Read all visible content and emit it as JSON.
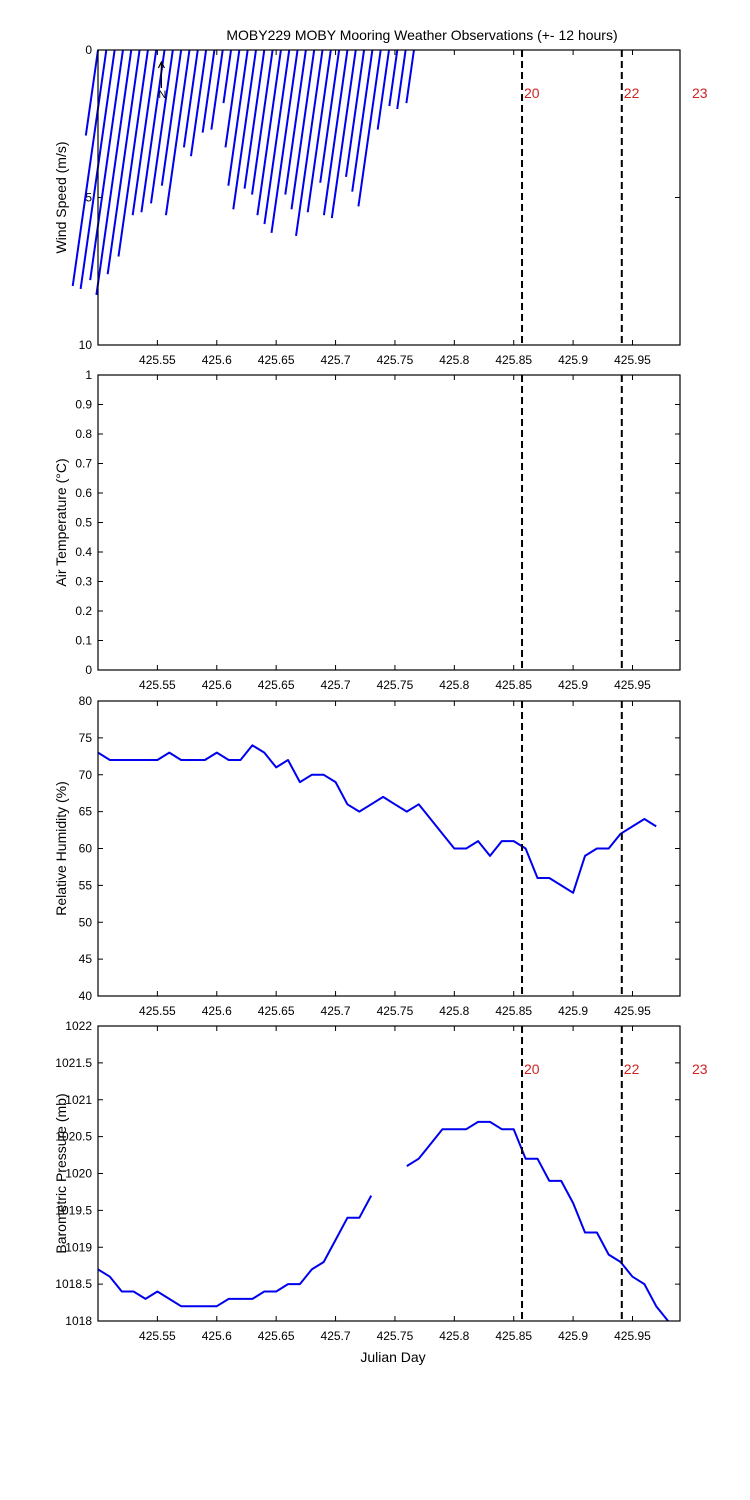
{
  "figure": {
    "title": "MOBY229 MOBY Mooring Weather Observations (+- 12 hours)",
    "xlabel": "Julian Day",
    "x_ticks": [
      "425.55",
      "425.6",
      "425.65",
      "425.7",
      "425.75",
      "425.8",
      "425.85",
      "425.9",
      "425.95"
    ],
    "x_tick_values": [
      425.55,
      425.6,
      425.65,
      425.7,
      425.75,
      425.8,
      425.85,
      425.9,
      425.95
    ],
    "xlim": [
      425.5,
      425.99
    ],
    "event_lines": [
      425.857,
      425.941
    ],
    "event_labels": [
      "20",
      "22",
      "23"
    ],
    "north_label": "N",
    "colors": {
      "series": "#0000ee",
      "event_label": "#cc2222",
      "axis": "#000000"
    }
  },
  "chart_data": [
    {
      "type": "line",
      "name": "wind",
      "ylabel": "Wind Speed (m/s)",
      "ylim": [
        10,
        0
      ],
      "y_ticks": [
        "0",
        "5",
        "10"
      ],
      "y_tick_values": [
        0,
        5,
        10
      ],
      "wind_stick_tips": [
        [
          425.5,
          2.9
        ],
        [
          425.507,
          8.0
        ],
        [
          425.514,
          8.1
        ],
        [
          425.521,
          7.8
        ],
        [
          425.528,
          8.3
        ],
        [
          425.535,
          7.6
        ],
        [
          425.542,
          7.0
        ],
        [
          425.549,
          5.6
        ],
        [
          425.556,
          5.5
        ],
        [
          425.563,
          5.2
        ],
        [
          425.57,
          4.6
        ],
        [
          425.577,
          5.6
        ],
        [
          425.584,
          3.3
        ],
        [
          425.591,
          3.6
        ],
        [
          425.598,
          2.8
        ],
        [
          425.605,
          2.7
        ],
        [
          425.612,
          1.8
        ],
        [
          425.619,
          3.3
        ],
        [
          425.626,
          4.6
        ],
        [
          425.633,
          5.4
        ],
        [
          425.64,
          4.7
        ],
        [
          425.647,
          4.9
        ],
        [
          425.654,
          5.6
        ],
        [
          425.661,
          5.9
        ],
        [
          425.668,
          6.2
        ],
        [
          425.675,
          4.9
        ],
        [
          425.682,
          5.4
        ],
        [
          425.689,
          6.3
        ],
        [
          425.696,
          5.5
        ],
        [
          425.703,
          4.5
        ],
        [
          425.71,
          5.6
        ],
        [
          425.717,
          5.7
        ],
        [
          425.724,
          4.3
        ],
        [
          425.731,
          4.8
        ],
        [
          425.738,
          5.3
        ],
        [
          425.745,
          2.7
        ],
        [
          425.752,
          1.9
        ],
        [
          425.759,
          2.0
        ],
        [
          425.766,
          1.8
        ]
      ]
    },
    {
      "type": "line",
      "name": "air_temperature",
      "ylabel": "Air Temperature (°C)",
      "ylim": [
        0,
        1
      ],
      "y_ticks": [
        "0",
        "0.1",
        "0.2",
        "0.3",
        "0.4",
        "0.5",
        "0.6",
        "0.7",
        "0.8",
        "0.9",
        "1"
      ],
      "y_tick_values": [
        0,
        0.1,
        0.2,
        0.3,
        0.4,
        0.5,
        0.6,
        0.7,
        0.8,
        0.9,
        1
      ],
      "x": [],
      "y": []
    },
    {
      "type": "line",
      "name": "relative_humidity",
      "ylabel": "Relative Humidity (%)",
      "ylim": [
        40,
        80
      ],
      "y_ticks": [
        "40",
        "45",
        "50",
        "55",
        "60",
        "65",
        "70",
        "75",
        "80"
      ],
      "y_tick_values": [
        40,
        45,
        50,
        55,
        60,
        65,
        70,
        75,
        80
      ],
      "x": [
        425.5,
        425.51,
        425.52,
        425.53,
        425.54,
        425.55,
        425.56,
        425.57,
        425.58,
        425.59,
        425.6,
        425.61,
        425.62,
        425.63,
        425.64,
        425.65,
        425.66,
        425.67,
        425.68,
        425.69,
        425.7,
        425.71,
        425.72,
        425.73,
        425.74,
        425.75,
        425.76,
        425.77,
        425.78,
        425.79,
        425.8,
        425.81,
        425.82,
        425.83,
        425.84,
        425.85,
        425.86,
        425.87,
        425.88,
        425.89,
        425.9,
        425.91,
        425.92,
        425.93,
        425.94,
        425.95,
        425.96,
        425.97,
        425.98,
        425.99
      ],
      "y": [
        73,
        72,
        72,
        72,
        72,
        72,
        73,
        72,
        72,
        72,
        73,
        72,
        72,
        74,
        73,
        71,
        72,
        69,
        70,
        70,
        69,
        66,
        65,
        66,
        67,
        66,
        65,
        66,
        64,
        62,
        60,
        60,
        61,
        59,
        61,
        61,
        60,
        56,
        56,
        55,
        54,
        59,
        60,
        60,
        62,
        63,
        64,
        63,
        null,
        null
      ]
    },
    {
      "type": "line",
      "name": "barometric_pressure",
      "ylabel": "Barometric Pressure (mb)",
      "ylim": [
        1018,
        1022
      ],
      "y_ticks": [
        "1018",
        "1018.5",
        "1019",
        "1019.5",
        "1020",
        "1020.5",
        "1021",
        "1021.5",
        "1022"
      ],
      "y_tick_values": [
        1018,
        1018.5,
        1019,
        1019.5,
        1020,
        1020.5,
        1021,
        1021.5,
        1022
      ],
      "x": [
        425.5,
        425.51,
        425.52,
        425.53,
        425.54,
        425.55,
        425.56,
        425.57,
        425.58,
        425.59,
        425.6,
        425.61,
        425.62,
        425.63,
        425.64,
        425.65,
        425.66,
        425.67,
        425.68,
        425.69,
        425.7,
        425.71,
        425.72,
        425.73,
        425.74,
        425.75,
        425.76,
        425.77,
        425.78,
        425.79,
        425.8,
        425.81,
        425.82,
        425.83,
        425.84,
        425.85,
        425.86,
        425.87,
        425.88,
        425.89,
        425.9,
        425.91,
        425.92,
        425.93,
        425.94,
        425.95,
        425.96,
        425.97,
        425.98,
        425.99
      ],
      "y": [
        1018.7,
        1018.6,
        1018.4,
        1018.4,
        1018.3,
        1018.4,
        1018.3,
        1018.2,
        1018.2,
        1018.2,
        1018.2,
        1018.3,
        1018.3,
        1018.3,
        1018.4,
        1018.4,
        1018.5,
        1018.5,
        1018.7,
        1018.8,
        1019.1,
        1019.4,
        1019.4,
        1019.7,
        null,
        null,
        1020.1,
        1020.2,
        1020.4,
        1020.6,
        1020.6,
        1020.6,
        1020.7,
        1020.7,
        1020.6,
        1020.6,
        1020.2,
        1020.2,
        1019.9,
        1019.9,
        1019.6,
        1019.2,
        1019.2,
        1018.9,
        1018.8,
        1018.6,
        1018.5,
        1018.2,
        1018.0,
        null
      ]
    }
  ]
}
